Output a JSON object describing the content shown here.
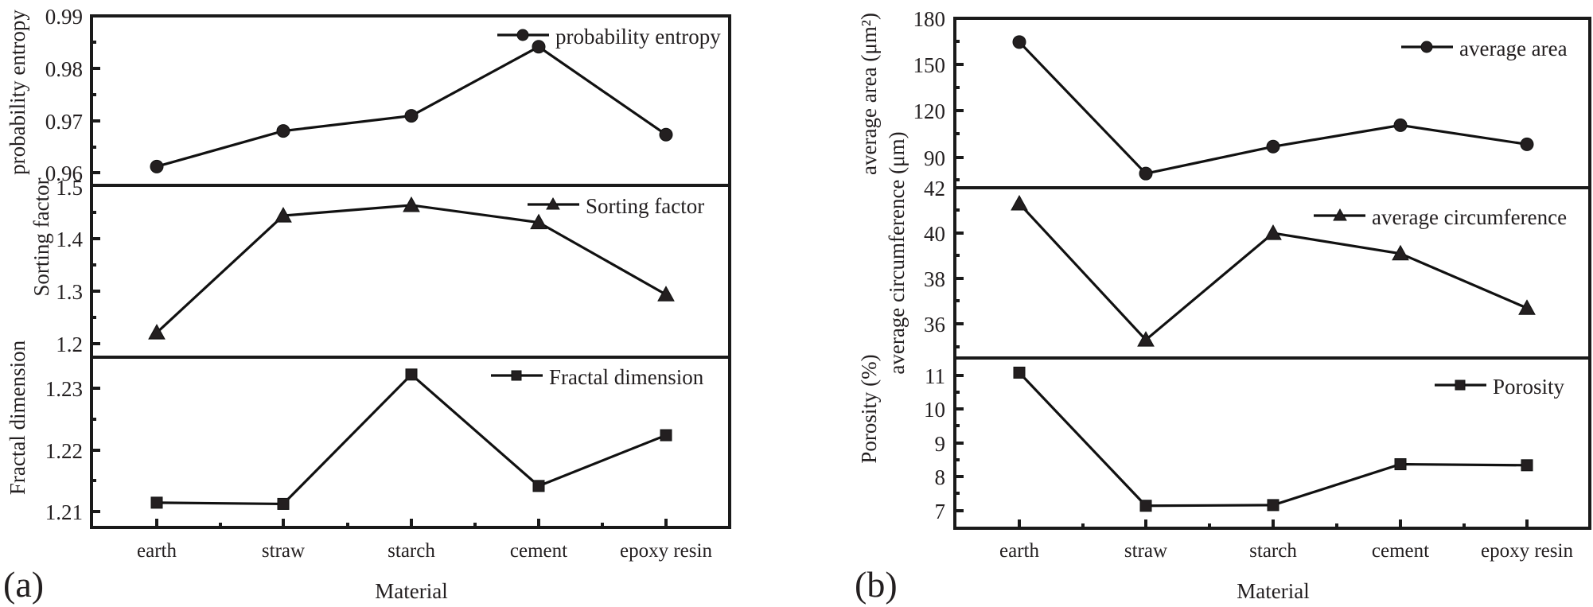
{
  "figure": {
    "panels": [
      {
        "tag": "(a)",
        "xlabel": "Material"
      },
      {
        "tag": "(b)",
        "xlabel": "Material"
      }
    ]
  },
  "chart_data": [
    {
      "type": "line",
      "panel": "(a)",
      "subplot": "top",
      "categories": [
        "earth",
        "straw",
        "starch",
        "cement",
        "epoxy resin"
      ],
      "series": [
        {
          "name": "probability entropy",
          "marker": "circle",
          "values": [
            0.9612,
            0.968,
            0.9709,
            0.9841,
            0.9673
          ]
        }
      ],
      "xlabel": "Material",
      "ylabel": "probability entropy",
      "yticks": [
        "0.96",
        "0.97",
        "0.98",
        "0.99"
      ],
      "ylim": [
        0.9576,
        0.99
      ],
      "legend_position": "upper right",
      "grid": false
    },
    {
      "type": "line",
      "panel": "(a)",
      "subplot": "middle",
      "categories": [
        "earth",
        "straw",
        "starch",
        "cement",
        "epoxy resin"
      ],
      "series": [
        {
          "name": "Sorting factor",
          "marker": "triangle",
          "values": [
            1.221,
            1.445,
            1.465,
            1.432,
            1.294
          ]
        }
      ],
      "xlabel": "Material",
      "ylabel": "Sorting factor",
      "yticks": [
        "1.2",
        "1.3",
        "1.4",
        "1.5"
      ],
      "ylim": [
        1.174,
        1.503
      ],
      "legend_position": "upper right",
      "grid": false
    },
    {
      "type": "line",
      "panel": "(a)",
      "subplot": "bottom",
      "categories": [
        "earth",
        "straw",
        "starch",
        "cement",
        "epoxy resin"
      ],
      "series": [
        {
          "name": "Fractal dimension",
          "marker": "square",
          "values": [
            1.2114,
            1.2112,
            1.2321,
            1.2141,
            1.2223
          ]
        }
      ],
      "xlabel": "Material",
      "ylabel": "Fractal dimension",
      "yticks": [
        "1.21",
        "1.22",
        "1.23"
      ],
      "ylim": [
        1.2074,
        1.2349
      ],
      "legend_position": "upper right",
      "grid": false
    },
    {
      "type": "line",
      "panel": "(b)",
      "subplot": "top",
      "categories": [
        "earth",
        "straw",
        "starch",
        "cement",
        "epoxy resin"
      ],
      "series": [
        {
          "name": "average area",
          "marker": "circle",
          "values": [
            164.6,
            79.2,
            96.7,
            110.6,
            98.2
          ]
        }
      ],
      "xlabel": "Material",
      "ylabel": "average area (μm²)",
      "yticks": [
        "90",
        "120",
        "150",
        "180"
      ],
      "ylim": [
        70,
        180
      ],
      "legend_position": "upper right",
      "grid": false
    },
    {
      "type": "line",
      "panel": "(b)",
      "subplot": "middle",
      "categories": [
        "earth",
        "straw",
        "starch",
        "cement",
        "epoxy resin"
      ],
      "series": [
        {
          "name": "average circumference",
          "marker": "triangle",
          "values": [
            41.3,
            35.3,
            40.0,
            39.1,
            36.7
          ]
        }
      ],
      "xlabel": "Material",
      "ylabel": "average circumference (μm)",
      "yticks": [
        "36",
        "38",
        "40",
        "42"
      ],
      "ylim": [
        34.5,
        42
      ],
      "legend_position": "upper right",
      "grid": false
    },
    {
      "type": "line",
      "panel": "(b)",
      "subplot": "bottom",
      "categories": [
        "earth",
        "straw",
        "starch",
        "cement",
        "epoxy resin"
      ],
      "series": [
        {
          "name": "Porosity",
          "marker": "square",
          "values": [
            11.07,
            7.16,
            7.18,
            8.38,
            8.35
          ]
        }
      ],
      "xlabel": "Material",
      "ylabel": "Porosity (%)",
      "yticks": [
        "7",
        "8",
        "9",
        "10",
        "11"
      ],
      "ylim": [
        6.5,
        11.5
      ],
      "legend_position": "upper right",
      "grid": false
    }
  ]
}
